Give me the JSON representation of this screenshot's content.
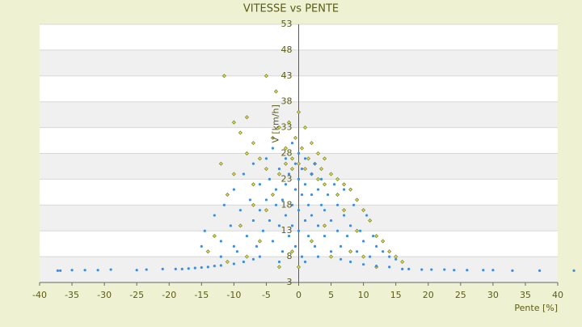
{
  "chart_data": {
    "type": "scatter",
    "title": "VITESSE vs PENTE",
    "x_label": "Pente [%]",
    "y_label": "V [km/h]",
    "xlim": [
      -40,
      40
    ],
    "xticks": [
      -40,
      -35,
      -30,
      -25,
      -20,
      -15,
      -10,
      -5,
      0,
      5,
      10,
      15,
      20,
      25,
      30,
      35,
      40
    ],
    "ylim": [
      3,
      53
    ],
    "yticks": [
      3,
      8,
      13,
      18,
      23,
      28,
      33,
      38,
      43,
      48,
      53
    ],
    "series": [
      {
        "color": "#7f8a1c",
        "marker": "diamond",
        "x": [
          -11.5,
          -5,
          -3.5,
          -10,
          -8,
          -9,
          -7,
          -6,
          -4,
          -3,
          -2,
          -1.5,
          -1,
          -0.5,
          0,
          0.5,
          1,
          1.5,
          2,
          2.5,
          3,
          3.5,
          4,
          5,
          6,
          7,
          8,
          9,
          10,
          11,
          12,
          13,
          14,
          15,
          16,
          -12,
          -11,
          -10,
          -9,
          -8,
          -7,
          -6,
          -5,
          -4,
          -3,
          -2,
          -1,
          0,
          1,
          2,
          3,
          4,
          -13,
          -14,
          -11,
          -8,
          5,
          8,
          10,
          12,
          -3,
          0,
          6,
          7,
          9,
          -5,
          -7,
          4,
          2,
          -1
        ],
        "y": [
          43,
          43,
          40,
          34,
          35,
          32,
          30,
          27,
          31,
          33,
          29,
          34,
          27,
          31,
          36,
          29,
          33,
          27,
          30,
          26,
          28,
          25,
          27,
          24,
          23,
          22,
          21,
          19,
          17,
          15,
          12,
          11,
          9,
          8,
          7,
          26,
          20,
          24,
          14,
          28,
          22,
          11,
          25,
          20,
          24,
          26,
          25,
          26,
          25,
          24,
          23,
          22,
          12,
          9,
          7,
          8,
          8,
          9,
          8,
          6,
          6,
          6,
          20,
          17,
          13,
          17,
          18,
          14,
          11,
          9
        ]
      },
      {
        "color": "#3d8ee0",
        "marker": "circle",
        "x": [
          -37.2,
          -36.8,
          -35,
          -33,
          -31,
          -29,
          -25,
          -23.5,
          -21,
          -19,
          -18,
          -17,
          -16,
          -15,
          -14,
          -13,
          -12,
          -10,
          -8.5,
          -7,
          -6,
          16,
          17,
          19,
          20.5,
          22.5,
          24,
          26,
          28.5,
          30,
          33,
          37.2,
          42.5,
          12,
          14,
          10,
          8,
          6.5,
          -14.5,
          -13,
          -12,
          -11.5,
          -10.5,
          -10,
          -9.5,
          -9,
          -8.5,
          -8,
          -7.5,
          -7,
          -7,
          -6.5,
          -6,
          -6,
          -5.5,
          -5,
          -5,
          -4.5,
          -4.5,
          -4,
          -4,
          -3.5,
          -3.5,
          -3,
          -3,
          -2.5,
          -2.5,
          -2,
          -2,
          -2,
          -1.5,
          -1.5,
          -1,
          -1,
          -1,
          -0.5,
          -0.5,
          -0.5,
          0,
          0,
          0,
          0,
          0.5,
          0.5,
          0.5,
          1,
          1,
          1,
          1.5,
          1.5,
          2,
          2,
          2,
          2.5,
          2.5,
          3,
          3,
          3.5,
          3.5,
          4,
          4,
          4.5,
          5,
          5,
          5.5,
          6,
          6,
          6.5,
          7,
          7,
          7.5,
          8,
          8.5,
          9,
          9.5,
          10,
          10.5,
          11,
          11.5,
          12,
          13,
          14,
          15,
          -12,
          -10,
          -15,
          3,
          -3,
          1
        ],
        "y": [
          5.3,
          5.3,
          5.4,
          5.4,
          5.4,
          5.5,
          5.4,
          5.5,
          5.6,
          5.6,
          5.6,
          5.7,
          5.8,
          5.9,
          6,
          6.2,
          6.3,
          6.6,
          7,
          7.5,
          8,
          5.6,
          5.6,
          5.5,
          5.5,
          5.5,
          5.4,
          5.4,
          5.4,
          5.4,
          5.3,
          5.3,
          5.3,
          6.2,
          6,
          6.5,
          7,
          7.5,
          13,
          16,
          11,
          18,
          14,
          21,
          9,
          17,
          24,
          12,
          19,
          15,
          26,
          10,
          22,
          17,
          13,
          27,
          19,
          15,
          23,
          11,
          29,
          18,
          21,
          14,
          25,
          9,
          19,
          27,
          16,
          22,
          12,
          24,
          18,
          30,
          14,
          21,
          26,
          10,
          17,
          23,
          28,
          13,
          20,
          25,
          8,
          15,
          22,
          27,
          18,
          12,
          24,
          16,
          20,
          10,
          26,
          14,
          21,
          18,
          23,
          12,
          17,
          20,
          9,
          15,
          22,
          13,
          18,
          10,
          16,
          21,
          12,
          14,
          18,
          9,
          13,
          11,
          16,
          8,
          12,
          10,
          9,
          8,
          7.5,
          8,
          10,
          10,
          8,
          7,
          7
        ]
      }
    ]
  }
}
